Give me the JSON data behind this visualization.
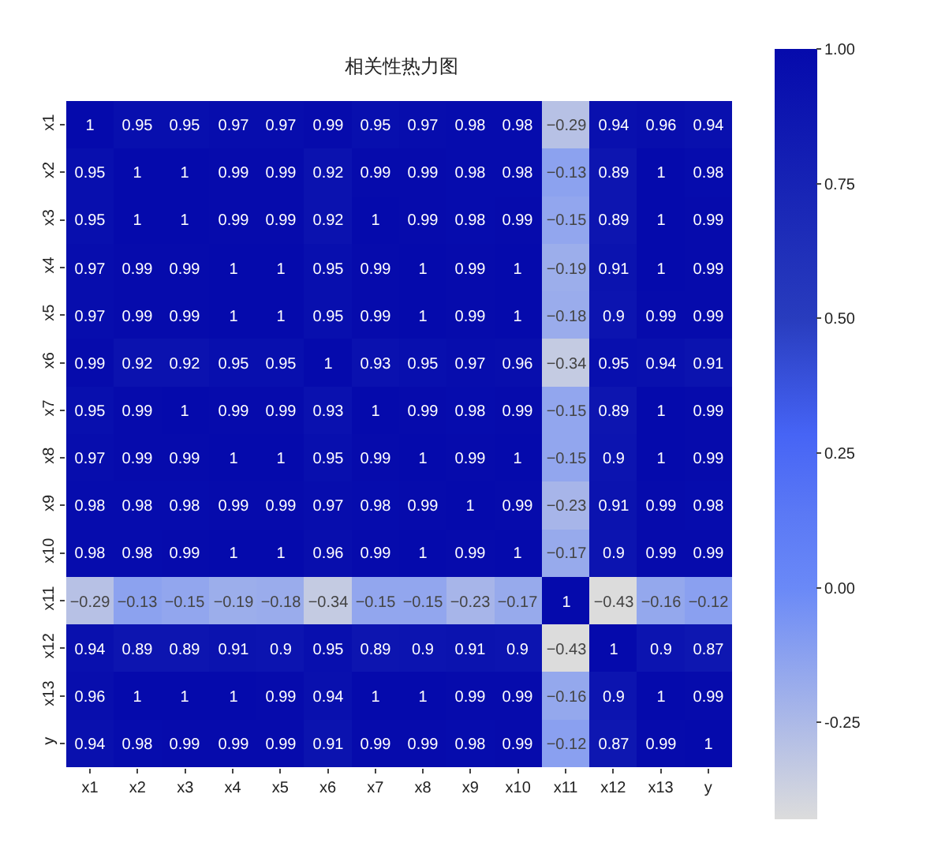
{
  "chart_data": {
    "type": "heatmap",
    "title": "相关性热力图",
    "categories": [
      "x1",
      "x2",
      "x3",
      "x4",
      "x5",
      "x6",
      "x7",
      "x8",
      "x9",
      "x10",
      "x11",
      "x12",
      "x13",
      "y"
    ],
    "y_categories": [
      "x1",
      "x2",
      "x3",
      "x4",
      "x5",
      "x6",
      "x7",
      "x8",
      "x9",
      "x10",
      "x11",
      "x12",
      "x13",
      "y"
    ],
    "cells": [
      [
        1,
        0.95,
        0.95,
        0.97,
        0.97,
        0.99,
        0.95,
        0.97,
        0.98,
        0.98,
        -0.29,
        0.94,
        0.96,
        0.94
      ],
      [
        0.95,
        1,
        1,
        0.99,
        0.99,
        0.92,
        0.99,
        0.99,
        0.98,
        0.98,
        -0.13,
        0.89,
        1,
        0.98
      ],
      [
        0.95,
        1,
        1,
        0.99,
        0.99,
        0.92,
        1,
        0.99,
        0.98,
        0.99,
        -0.15,
        0.89,
        1,
        0.99
      ],
      [
        0.97,
        0.99,
        0.99,
        1,
        1,
        0.95,
        0.99,
        1,
        0.99,
        1,
        -0.19,
        0.91,
        1,
        0.99
      ],
      [
        0.97,
        0.99,
        0.99,
        1,
        1,
        0.95,
        0.99,
        1,
        0.99,
        1,
        -0.18,
        0.9,
        0.99,
        0.99
      ],
      [
        0.99,
        0.92,
        0.92,
        0.95,
        0.95,
        1,
        0.93,
        0.95,
        0.97,
        0.96,
        -0.34,
        0.95,
        0.94,
        0.91
      ],
      [
        0.95,
        0.99,
        1,
        0.99,
        0.99,
        0.93,
        1,
        0.99,
        0.98,
        0.99,
        -0.15,
        0.89,
        1,
        0.99
      ],
      [
        0.97,
        0.99,
        0.99,
        1,
        1,
        0.95,
        0.99,
        1,
        0.99,
        1,
        -0.15,
        0.9,
        1,
        0.99
      ],
      [
        0.98,
        0.98,
        0.98,
        0.99,
        0.99,
        0.97,
        0.98,
        0.99,
        1,
        0.99,
        -0.23,
        0.91,
        0.99,
        0.98
      ],
      [
        0.98,
        0.98,
        0.99,
        1,
        1,
        0.96,
        0.99,
        1,
        0.99,
        1,
        -0.17,
        0.9,
        0.99,
        0.99
      ],
      [
        -0.29,
        -0.13,
        -0.15,
        -0.19,
        -0.18,
        -0.34,
        -0.15,
        -0.15,
        -0.23,
        -0.17,
        1,
        -0.43,
        -0.16,
        -0.12
      ],
      [
        0.94,
        0.89,
        0.89,
        0.91,
        0.9,
        0.95,
        0.89,
        0.9,
        0.91,
        0.9,
        -0.43,
        1,
        0.9,
        0.87
      ],
      [
        0.96,
        1,
        1,
        1,
        0.99,
        0.94,
        1,
        1,
        0.99,
        0.99,
        -0.16,
        0.9,
        1,
        0.99
      ],
      [
        0.94,
        0.98,
        0.99,
        0.99,
        0.99,
        0.91,
        0.99,
        0.99,
        0.98,
        0.99,
        -0.12,
        0.87,
        0.99,
        1
      ]
    ],
    "clim": [
      -0.43,
      1
    ],
    "cticks": [
      {
        "value": -0.25,
        "label": "-0.25"
      },
      {
        "value": 0,
        "label": "0.00"
      },
      {
        "value": 0.25,
        "label": "0.25"
      },
      {
        "value": 0.5,
        "label": "0.50"
      },
      {
        "value": 0.75,
        "label": "0.75"
      },
      {
        "value": 1,
        "label": "1.00"
      }
    ],
    "data_labels": true
  }
}
